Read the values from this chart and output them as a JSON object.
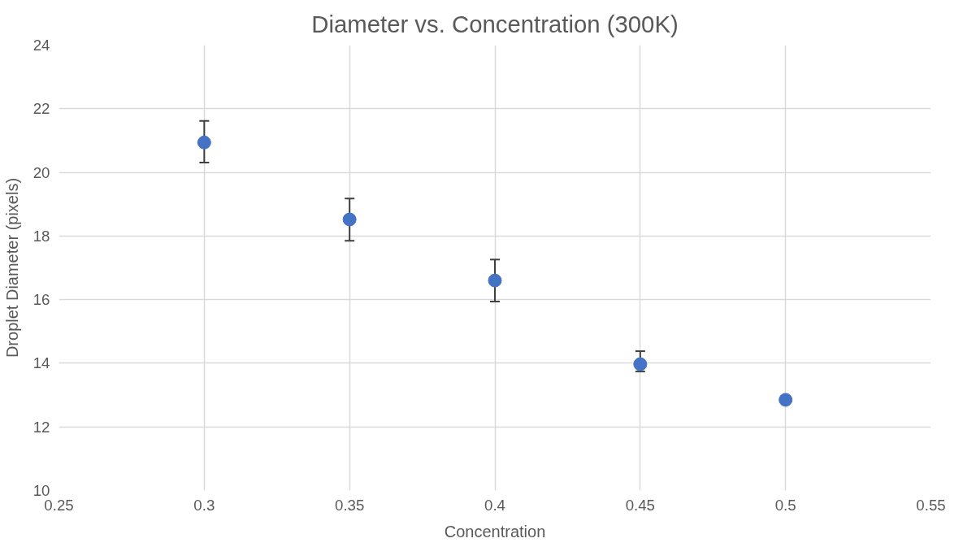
{
  "chart_data": {
    "type": "scatter",
    "title": "Diameter vs. Concentration (300K)",
    "xlabel": "Concentration",
    "ylabel": "Droplet Diameter (pixels)",
    "x": [
      0.3,
      0.35,
      0.4,
      0.45,
      0.5
    ],
    "series": [
      {
        "color": "#4472c4",
        "values": [
          20.94,
          18.52,
          16.6,
          13.97,
          12.85
        ],
        "errors": [
          [
            20.31,
            21.62
          ],
          [
            17.85,
            19.18
          ],
          [
            15.94,
            17.26
          ],
          [
            13.74,
            14.38
          ],
          null
        ]
      }
    ],
    "xlim": [
      0.25,
      0.55
    ],
    "xticks": [
      0.25,
      0.3,
      0.35,
      0.4,
      0.45,
      0.5,
      0.55
    ],
    "ylim": [
      10,
      24
    ],
    "yticks": [
      10,
      12,
      14,
      16,
      18,
      20,
      22,
      24
    ],
    "grid": true,
    "marker": "circle"
  }
}
